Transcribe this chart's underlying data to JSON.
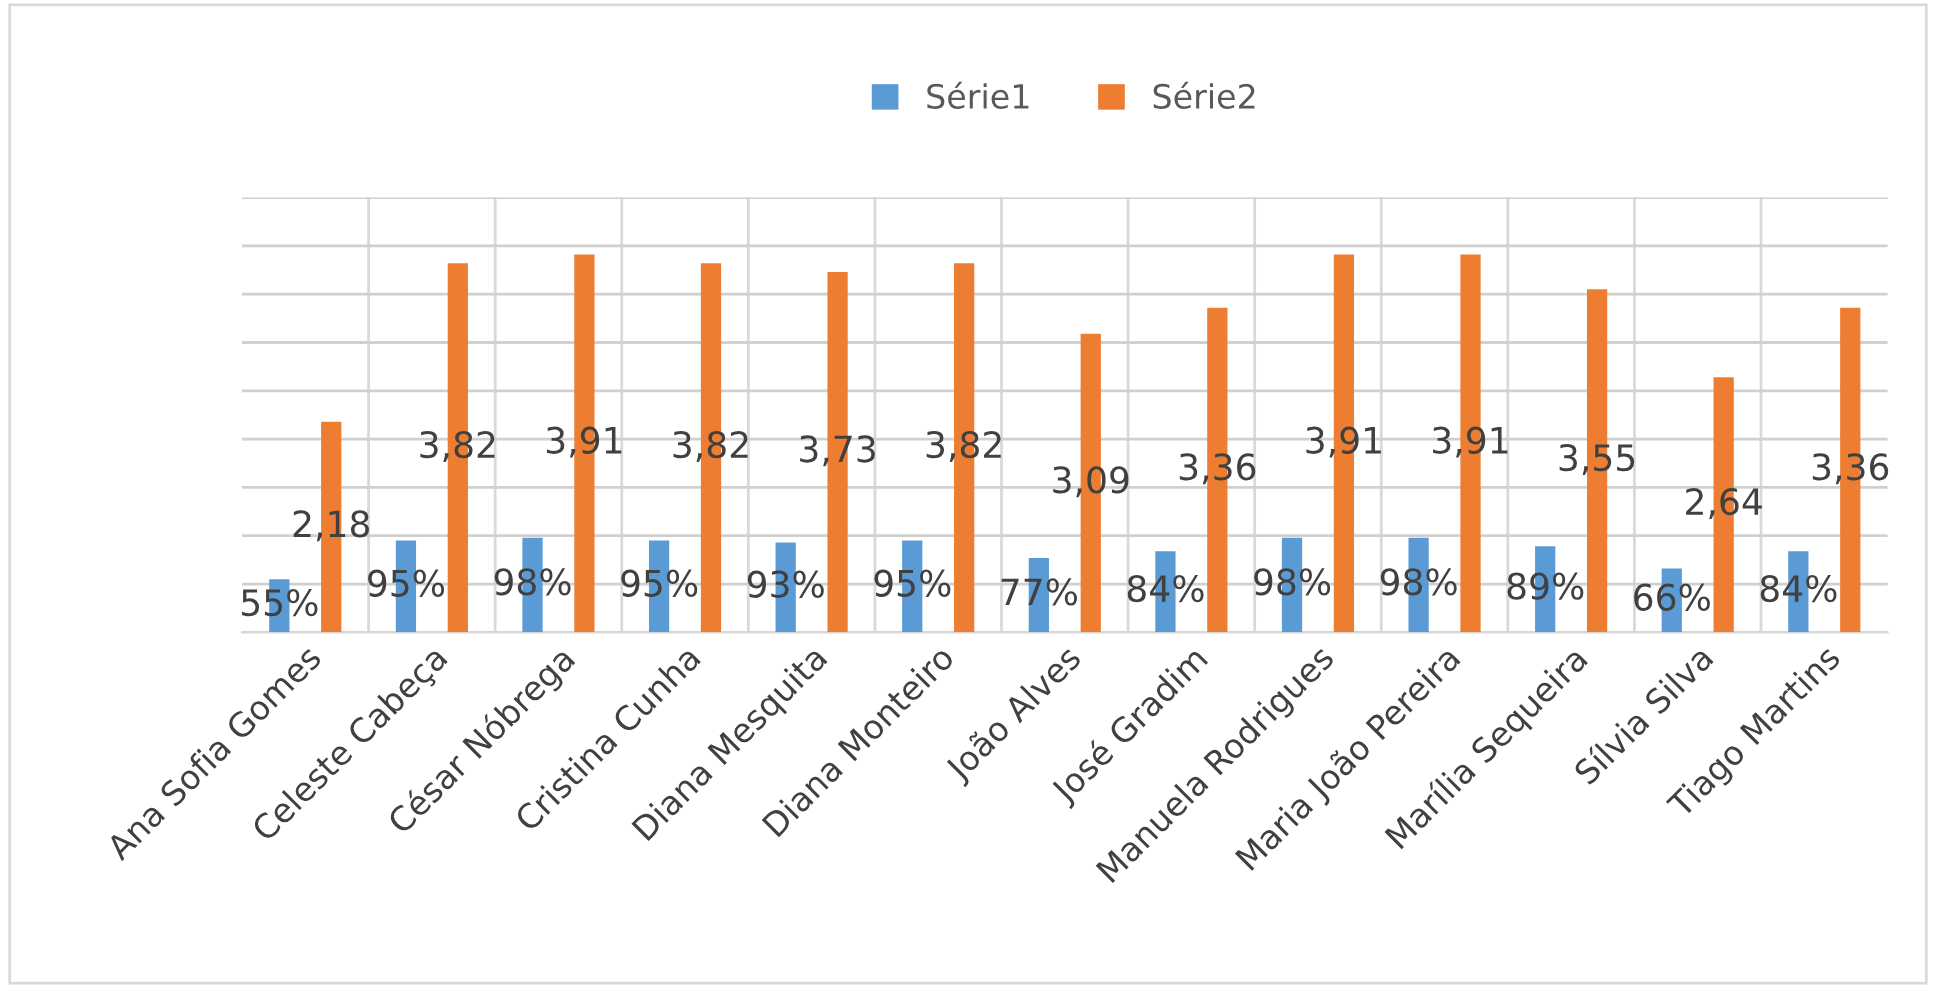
{
  "chart_data": {
    "type": "bar",
    "categories": [
      "Ana Sofia Gomes",
      "Celeste Cabeça",
      "César Nóbrega",
      "Cristina Cunha",
      "Diana Mesquita",
      "Diana Monteiro",
      "João Alves",
      "José Gradim",
      "Manuela Rodrigues",
      "Maria João Pereira",
      "Marília Sequeira",
      "Sílvia Silva",
      "Tiago Martins"
    ],
    "series": [
      {
        "name": "Série1",
        "color": "#5b9bd5",
        "values": [
          0.55,
          0.95,
          0.98,
          0.95,
          0.93,
          0.95,
          0.77,
          0.84,
          0.98,
          0.98,
          0.89,
          0.66,
          0.84
        ],
        "value_labels": [
          "55%",
          "95%",
          "98%",
          "95%",
          "93%",
          "95%",
          "77%",
          "84%",
          "98%",
          "98%",
          "89%",
          "66%",
          "84%"
        ]
      },
      {
        "name": "Série2",
        "color": "#ed7d31",
        "values": [
          2.18,
          3.82,
          3.91,
          3.82,
          3.73,
          3.82,
          3.09,
          3.36,
          3.91,
          3.91,
          3.55,
          2.64,
          3.36
        ],
        "value_labels": [
          "2,18",
          "3,82",
          "3,91",
          "3,82",
          "3,73",
          "3,82",
          "3,09",
          "3,36",
          "3,91",
          "3,91",
          "3,55",
          "2,64",
          "3,36"
        ]
      }
    ],
    "ylim": [
      0,
      4.5
    ],
    "yticks": [
      {
        "value": 0,
        "label": null
      },
      {
        "value": 0.5,
        "label": null
      },
      {
        "value": 1,
        "label": null
      },
      {
        "value": 1.5,
        "label": null
      },
      {
        "value": 2,
        "label": null
      },
      {
        "value": 2.5,
        "label": null
      },
      {
        "value": 3,
        "label": null
      },
      {
        "value": 3.5,
        "label": null
      },
      {
        "value": 4,
        "label": null
      },
      {
        "value": 4.5,
        "label": null
      }
    ],
    "grid": "y",
    "legend": "top",
    "tick_labels": "x"
  }
}
